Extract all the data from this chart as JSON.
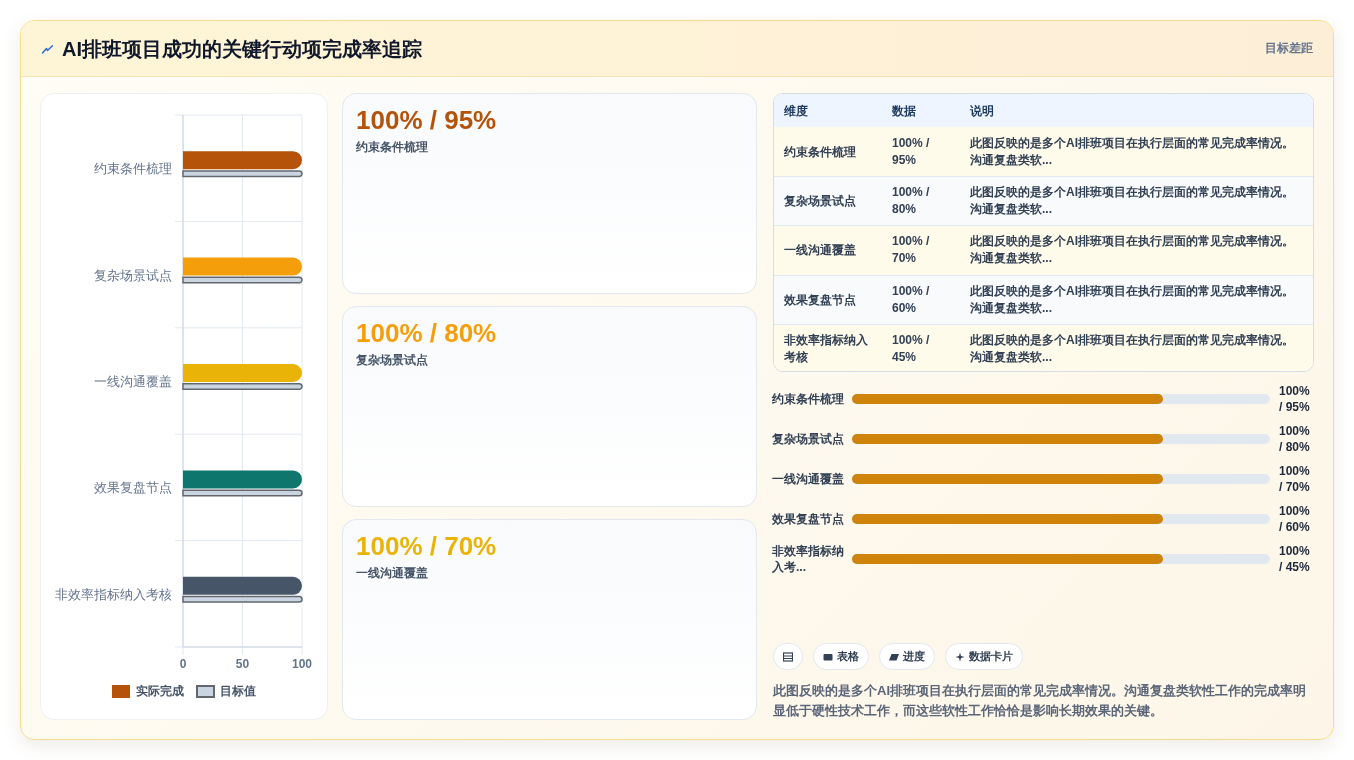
{
  "chart_data": [
    {
      "type": "other",
      "title": "AI排班项目成功的关键行动项完成率追踪",
      "subtitle": "目标差距"
    },
    {
      "type": "bar",
      "orientation": "horizontal",
      "categories": [
        "约束条件梳理",
        "复杂场景试点",
        "一线沟通覆盖",
        "效果复盘节点",
        "非效率指标纳入考核"
      ],
      "series": [
        {
          "name": "实际完成",
          "colors": [
            "#b45309",
            "#f59e0b",
            "#eab308",
            "#0f766e",
            "#475569"
          ],
          "values": [
            100,
            100,
            100,
            100,
            100
          ]
        },
        {
          "name": "目标值",
          "color": "#cbd5e1",
          "values": [
            100,
            100,
            100,
            100,
            100
          ]
        }
      ],
      "xlim": [
        0,
        100
      ],
      "xticks": [
        0,
        50,
        100
      ],
      "grid": true,
      "legend": "bottom"
    },
    {
      "type": "other",
      "categories": [
        "约束条件梳理",
        "复杂场景试点",
        "一线沟通覆盖"
      ],
      "value_labels": [
        "100% / 95%",
        "100% / 80%",
        "100% / 70%"
      ],
      "colors": [
        "#b45309",
        "#f59e0b",
        "#eab308"
      ]
    },
    {
      "type": "other",
      "categories": [
        "维度",
        "数据",
        "说明"
      ],
      "cell_labels": [
        [
          "约束条件梳理",
          "100% / 95%",
          "此图反映的是多个AI排班项目在执行层面的常见完成率情况。沟通复盘类软..."
        ],
        [
          "复杂场景试点",
          "100% / 80%",
          "此图反映的是多个AI排班项目在执行层面的常见完成率情况。沟通复盘类软..."
        ],
        [
          "一线沟通覆盖",
          "100% / 70%",
          "此图反映的是多个AI排班项目在执行层面的常见完成率情况。沟通复盘类软..."
        ],
        [
          "效果复盘节点",
          "100% / 60%",
          "此图反映的是多个AI排班项目在执行层面的常见完成率情况。沟通复盘类软..."
        ],
        [
          "非效率指标纳入考核",
          "100% / 45%",
          "此图反映的是多个AI排班项目在执行层面的常见完成率情况。沟通复盘类软..."
        ]
      ]
    },
    {
      "type": "bar",
      "orientation": "horizontal",
      "categories": [
        "约束条件梳理",
        "复杂场景试点",
        "一线沟通覆盖",
        "效果复盘节点",
        "非效率指标纳入考..."
      ],
      "values": [
        100,
        100,
        100,
        100,
        100
      ],
      "color": "#cf8309",
      "value_labels": [
        "100% / 95%",
        "100% / 80%",
        "100% / 70%",
        "100% / 60%",
        "100% / 45%"
      ]
    },
    {
      "type": "other",
      "categories": [
        null,
        "表格",
        "进度",
        "数据卡片"
      ],
      "annotations": [
        "此图反映的是多个AI排班项目在执行层面的常见完成率情况。沟通复盘类软性工作的完成率明显低于硬性技术工作，而这些软性工作恰恰是影响长期效果的关键。"
      ]
    }
  ]
}
